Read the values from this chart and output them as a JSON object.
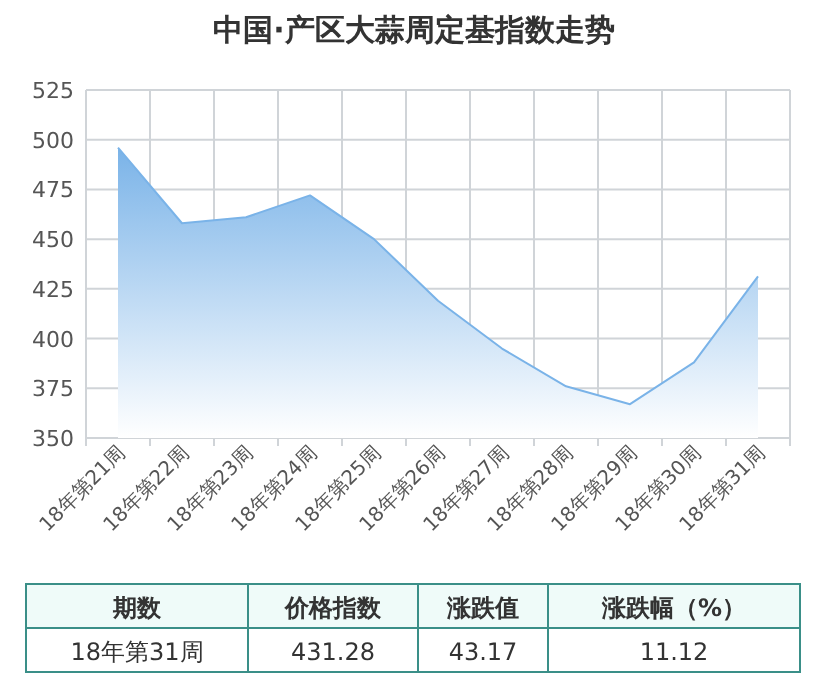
{
  "chart_data": {
    "type": "area",
    "title": "中国·产区大蒜周定基指数走势",
    "categories": [
      "18年第21周",
      "18年第22周",
      "18年第23周",
      "18年第24周",
      "18年第25周",
      "18年第26周",
      "18年第27周",
      "18年第28周",
      "18年第29周",
      "18年第30周",
      "18年第31周"
    ],
    "values": [
      496,
      458,
      461,
      472,
      450,
      419,
      395,
      376,
      367,
      388,
      431.28
    ],
    "color": "#7ab3e8",
    "ylim": [
      350,
      525
    ],
    "yticks": [
      350,
      375,
      400,
      425,
      450,
      475,
      500,
      525
    ],
    "grid": true,
    "annotations": [
      "期数",
      "价格指数",
      "涨跌值",
      "涨跌幅（%）",
      "18年第31周",
      "431.28",
      "43.17",
      "11.12"
    ]
  }
}
